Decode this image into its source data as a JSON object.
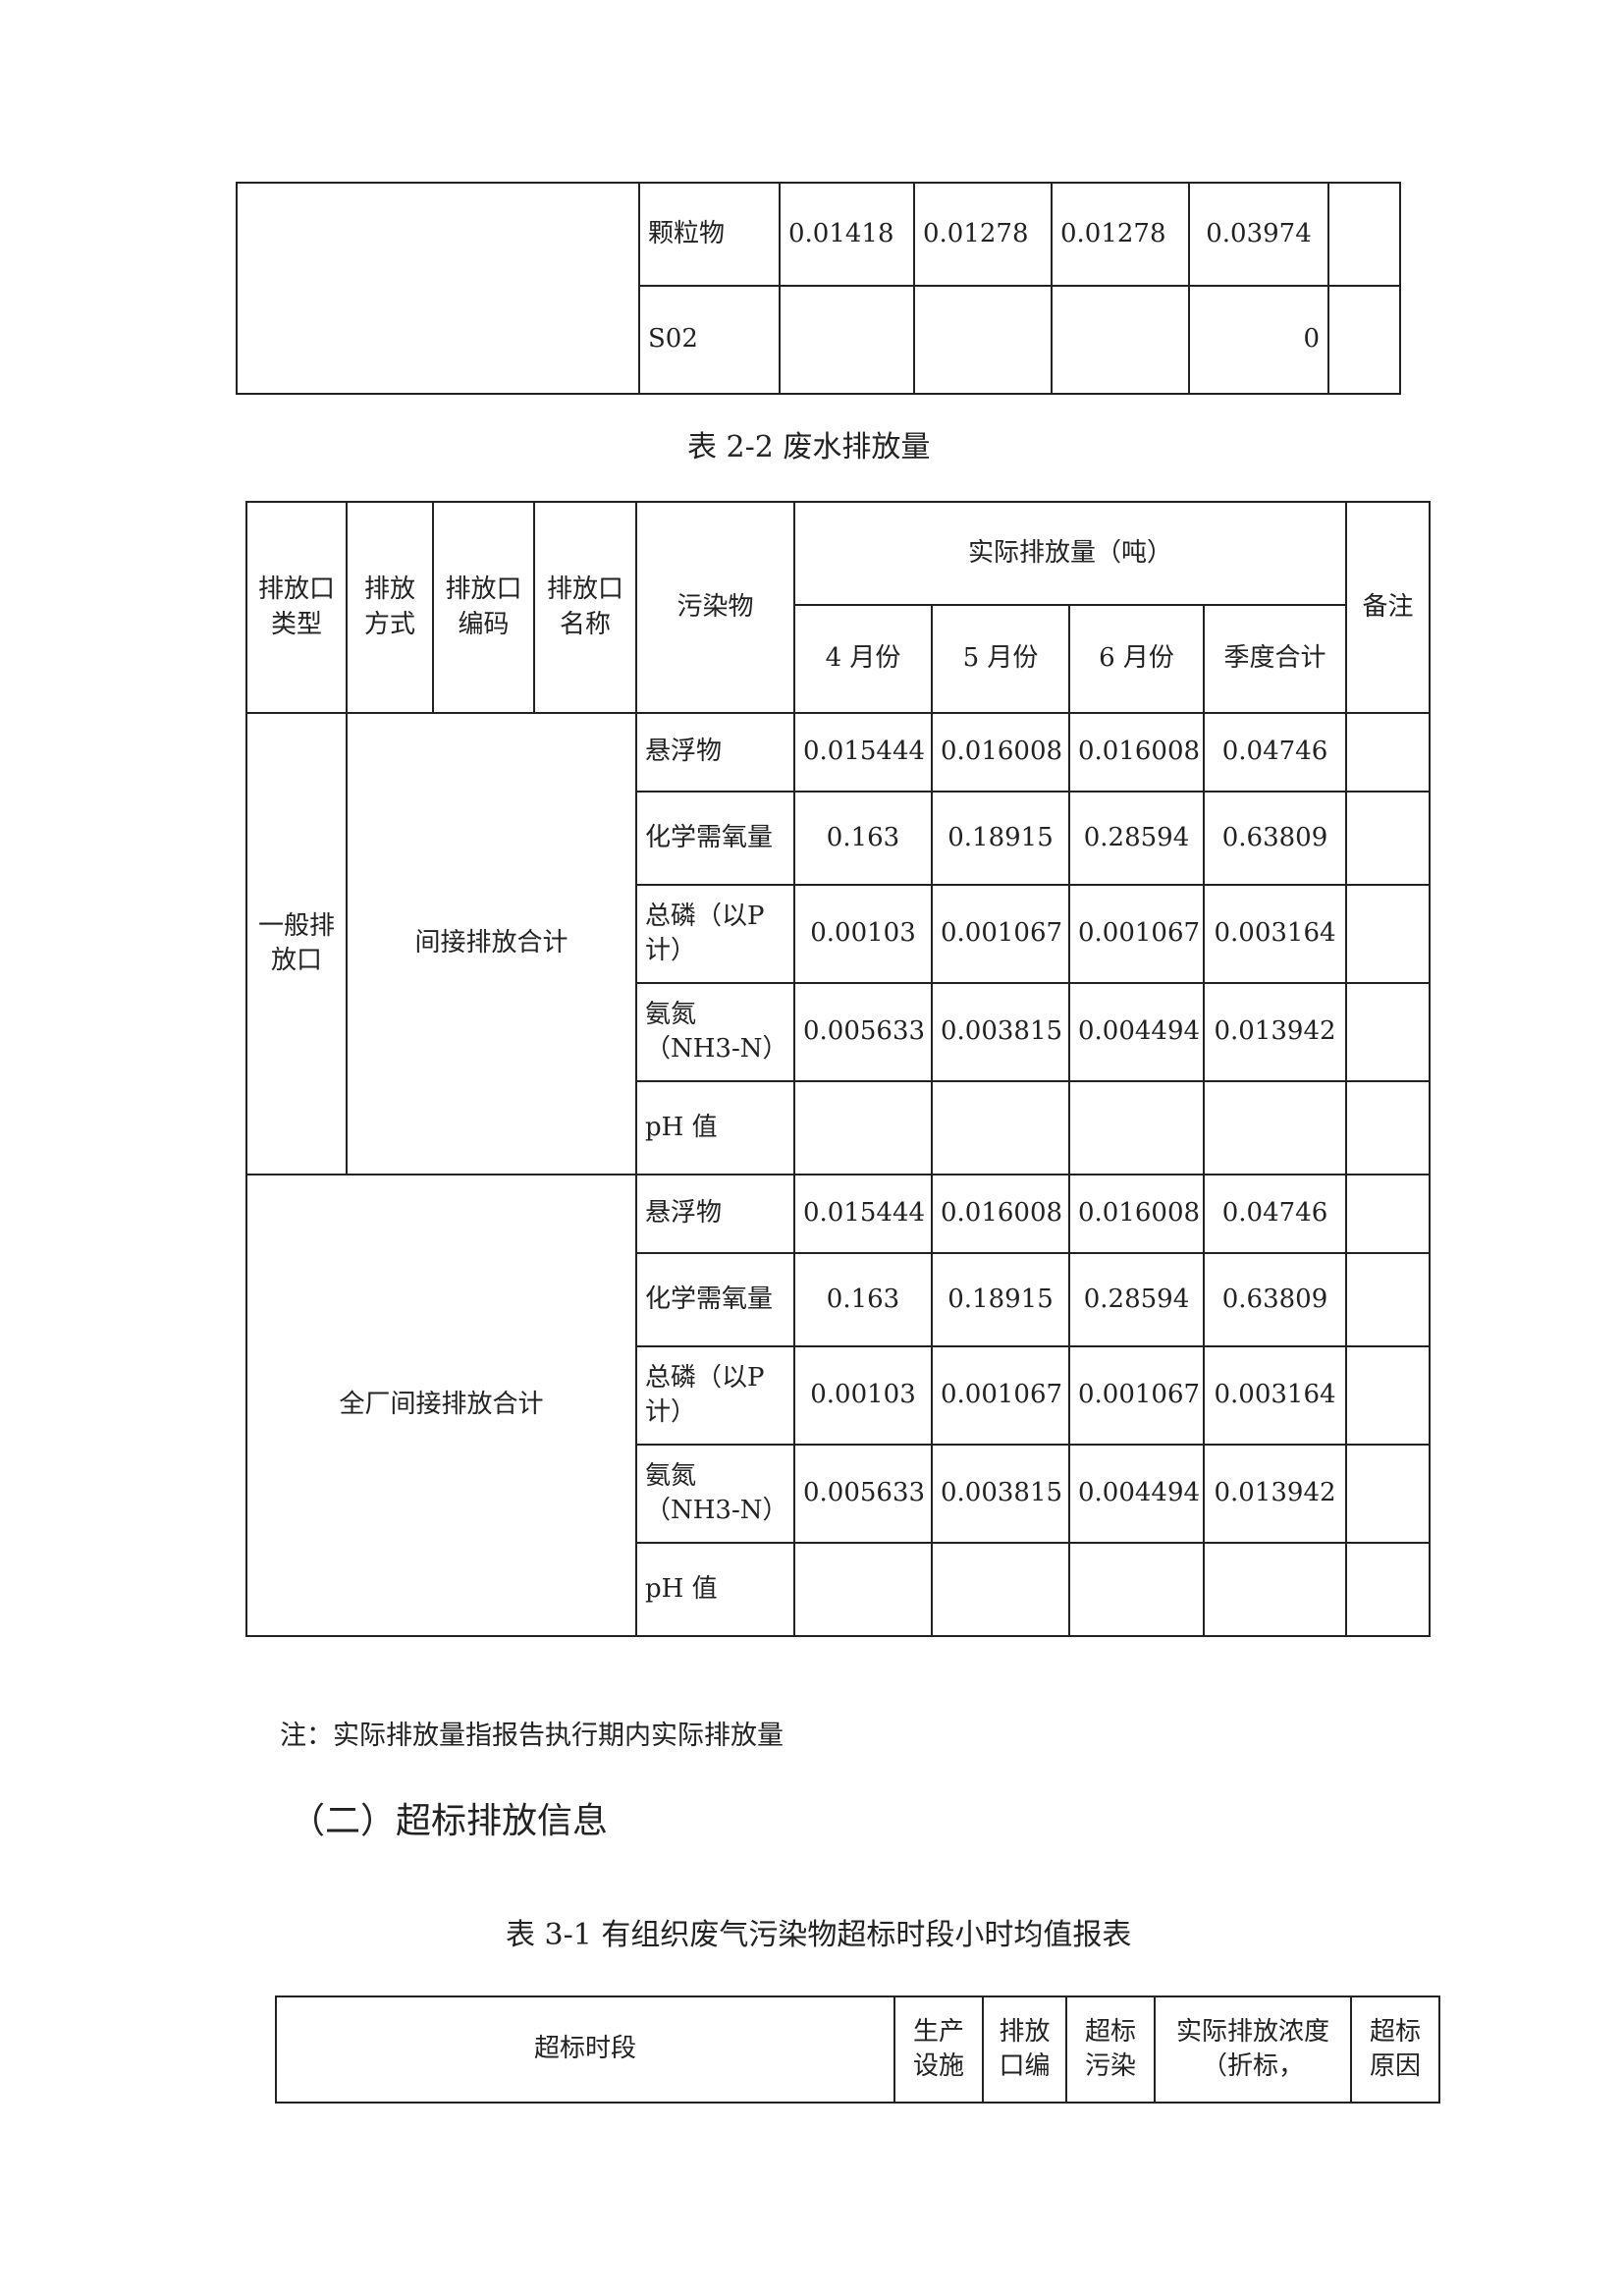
{
  "table_2_1_tail": {
    "rows": [
      {
        "pollutant": "颗粒物",
        "values": [
          "0.01418",
          "0.01278",
          "0.01278",
          "0.03974"
        ],
        "remark": ""
      },
      {
        "pollutant": "S02",
        "values": [
          "",
          "",
          "",
          "0"
        ],
        "remark": ""
      }
    ]
  },
  "table_2_2": {
    "caption": "表 2-2  废水排放量",
    "headers": {
      "outlet_type": "排放口类型",
      "discharge_method": "排放方式",
      "outlet_code": "排放口编码",
      "outlet_name": "排放口名称",
      "pollutant": "污染物",
      "actual": "实际排放量（吨）",
      "months": [
        "4 月份",
        "5 月份",
        "6 月份",
        "季度合计"
      ],
      "remark": "备注"
    },
    "groups": [
      {
        "type": "一般排放口",
        "label": "间接排放合计",
        "rows": [
          {
            "pollutant": "悬浮物",
            "values": [
              "0.015444",
              "0.016008",
              "0.016008",
              "0.04746"
            ]
          },
          {
            "pollutant": "化学需氧量",
            "values": [
              "0.163",
              "0.18915",
              "0.28594",
              "0.63809"
            ]
          },
          {
            "pollutant": "总磷（以P计）",
            "values": [
              "0.00103",
              "0.001067",
              "0.001067",
              "0.003164"
            ]
          },
          {
            "pollutant": "氨氮（NH3-N）",
            "values": [
              "0.005633",
              "0.003815",
              "0.004494",
              "0.013942"
            ]
          },
          {
            "pollutant": "pH 值",
            "values": [
              "",
              "",
              "",
              ""
            ]
          }
        ]
      },
      {
        "label": "全厂间接排放合计",
        "rows": [
          {
            "pollutant": "悬浮物",
            "values": [
              "0.015444",
              "0.016008",
              "0.016008",
              "0.04746"
            ]
          },
          {
            "pollutant": "化学需氧量",
            "values": [
              "0.163",
              "0.18915",
              "0.28594",
              "0.63809"
            ]
          },
          {
            "pollutant": "总磷（以P计）",
            "values": [
              "0.00103",
              "0.001067",
              "0.001067",
              "0.003164"
            ]
          },
          {
            "pollutant": "氨氮（NH3-N）",
            "values": [
              "0.005633",
              "0.003815",
              "0.004494",
              "0.013942"
            ]
          },
          {
            "pollutant": "pH 值",
            "values": [
              "",
              "",
              "",
              ""
            ]
          }
        ]
      }
    ],
    "note": "注：实际排放量指报告执行期内实际排放量"
  },
  "section_heading": "（二）超标排放信息",
  "table_3_1": {
    "caption": "表 3-1  有组织废气污染物超标时段小时均值报表",
    "headers": [
      "超标时段",
      "生产设施",
      "排放口编",
      "超标污染",
      "实际排放浓度（折标，",
      "超标原因"
    ]
  }
}
